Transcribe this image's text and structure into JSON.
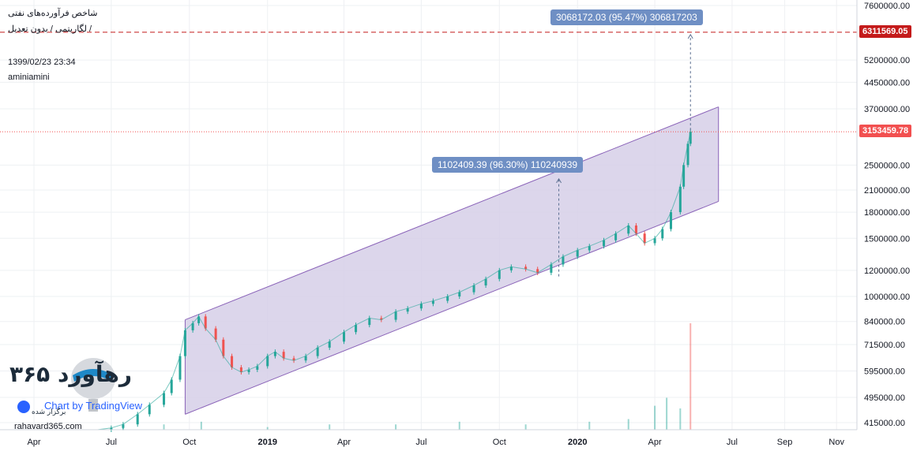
{
  "header": {
    "title": "شاخص فرآورده‌های نفتی",
    "subtitle": "لگاریتمی / بدون تعدیل /",
    "datetime": "1399/02/23 23:34",
    "author": "aminiamini"
  },
  "branding": {
    "logo_text": "۳۶۵ رهآورد",
    "tradingview": "Chart by TradingView",
    "tradingview_fa": "برگزار شده",
    "site": "rahavard365.com"
  },
  "price_tags": {
    "upper": "6311569.05",
    "current": "3153459.78"
  },
  "measures": [
    {
      "label": "3068172.03 (95.47%) 306817203"
    },
    {
      "label": "1102409.39 (96.30%) 110240939"
    }
  ],
  "colors": {
    "up": "#26a69a",
    "down": "#ef5350",
    "channel_fill": "#d6cfe8",
    "channel_line": "#8a63b8",
    "upper_tag": "#c41b1b",
    "current_tag": "#f25050"
  },
  "chart_data": {
    "type": "line",
    "scale": "log",
    "x_tick_labels": [
      "Apr",
      "Jul",
      "Oct",
      "2019",
      "Apr",
      "Jul",
      "Oct",
      "2020",
      "Apr",
      "Jul",
      "Sep",
      "Nov"
    ],
    "y_tick_labels": [
      "7600000.00",
      "6311569.05",
      "5200000.00",
      "4450000.00",
      "3700000.00",
      "3153459.78",
      "2500000.00",
      "2100000.00",
      "1800000.00",
      "1500000.00",
      "1200000.00",
      "1000000.00",
      "840000.00",
      "715000.00",
      "595000.00",
      "495000.00",
      "415000.00"
    ],
    "y_ticks": [
      7600000,
      5200000,
      4450000,
      3700000,
      2500000,
      2100000,
      1800000,
      1500000,
      1200000,
      1000000,
      840000,
      715000,
      595000,
      495000,
      415000
    ],
    "ylim": [
      395000,
      7900000
    ],
    "grid": true,
    "series": [
      {
        "dates": [
          "2018-06-15",
          "2018-07-01",
          "2018-07-15",
          "2018-08-01",
          "2018-08-15",
          "2018-09-01",
          "2018-09-10",
          "2018-09-20",
          "2018-09-26",
          "2018-10-05",
          "2018-10-12",
          "2018-10-20",
          "2018-11-01",
          "2018-11-10",
          "2018-11-20",
          "2018-12-01",
          "2018-12-10",
          "2018-12-20",
          "2019-01-01",
          "2019-01-10",
          "2019-01-20",
          "2019-02-01",
          "2019-02-15",
          "2019-03-01",
          "2019-03-15",
          "2019-04-01",
          "2019-04-15",
          "2019-05-01",
          "2019-05-15",
          "2019-06-01",
          "2019-06-15",
          "2019-07-01",
          "2019-07-15",
          "2019-08-01",
          "2019-08-15",
          "2019-09-01",
          "2019-09-15",
          "2019-10-01",
          "2019-10-15",
          "2019-11-01",
          "2019-11-15",
          "2019-12-01",
          "2019-12-15",
          "2020-01-01",
          "2020-01-15",
          "2020-02-01",
          "2020-02-15",
          "2020-03-01",
          "2020-03-10",
          "2020-03-20",
          "2020-04-01",
          "2020-04-10",
          "2020-04-20",
          "2020-05-01",
          "2020-05-05",
          "2020-05-10",
          "2020-05-13"
        ],
        "values": [
          395000,
          400000,
          410000,
          440000,
          470000,
          510000,
          560000,
          660000,
          790000,
          830000,
          870000,
          800000,
          740000,
          660000,
          610000,
          590000,
          600000,
          615000,
          660000,
          680000,
          650000,
          640000,
          660000,
          700000,
          730000,
          780000,
          820000,
          860000,
          850000,
          900000,
          920000,
          950000,
          970000,
          1000000,
          1030000,
          1080000,
          1130000,
          1200000,
          1230000,
          1210000,
          1180000,
          1250000,
          1320000,
          1380000,
          1420000,
          1480000,
          1550000,
          1640000,
          1550000,
          1450000,
          1500000,
          1600000,
          1800000,
          2150000,
          2500000,
          2900000,
          3153459.78
        ]
      }
    ],
    "channel": {
      "upper": [
        [
          "2018-09-26",
          850000
        ],
        [
          "2020-06-15",
          3750000
        ]
      ],
      "lower": [
        [
          "2018-09-26",
          440000
        ],
        [
          "2020-06-15",
          1940000
        ]
      ]
    },
    "volume": {
      "dates": [
        "2018-07-15",
        "2018-09-01",
        "2018-10-15",
        "2019-01-01",
        "2019-03-15",
        "2019-06-01",
        "2019-08-15",
        "2019-11-01",
        "2020-01-15",
        "2020-03-01",
        "2020-04-01",
        "2020-04-15",
        "2020-05-01",
        "2020-05-13"
      ],
      "values": [
        1,
        2,
        3,
        1,
        2,
        2,
        3,
        2,
        3,
        4,
        9,
        12,
        8,
        40
      ]
    }
  }
}
